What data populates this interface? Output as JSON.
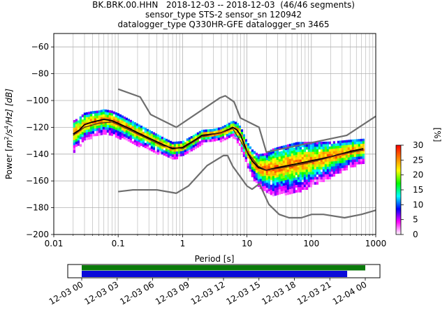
{
  "title_lines": [
    "BK.BRK.00.HHN   2018-12-03 -- 2018-12-03  (46/46 segments)",
    "sensor_type STS-2 sensor_sn 120942",
    "datalogger_type Q330HR-GFE datalogger_sn 3465"
  ],
  "colors": {
    "noise_models": "#6e6e6e",
    "mode_line": "#000000",
    "mean_line": "#5a2a1a",
    "coverage_data": "#0b0bd9",
    "coverage_gaps": "#0a7a0a"
  },
  "chart_data": [
    {
      "type": "heatmap",
      "name": "ppsd",
      "xlabel": "Period [s]",
      "ylabel": "Power [m²/s⁴/Hz] [dB]",
      "ylabel_parts": {
        "pre": "Power [",
        "base1": "m",
        "sup1": "2",
        "mid": "/s",
        "sup2": "4",
        "post": "/Hz] [dB]"
      },
      "xscale": "log",
      "xlim": [
        0.01,
        1000
      ],
      "ylim": [
        -200,
        -50
      ],
      "xticks": [
        0.01,
        0.1,
        1,
        10,
        100,
        1000
      ],
      "xtick_labels": [
        "0.01",
        "0.1",
        "1",
        "10",
        "100",
        "1000"
      ],
      "yticks": [
        -200,
        -180,
        -160,
        -140,
        -120,
        -100,
        -80,
        -60
      ],
      "ytick_labels": [
        "−200",
        "−180",
        "−160",
        "−140",
        "−120",
        "−100",
        "−80",
        "−60"
      ],
      "grid": true,
      "period_range": [
        0.02,
        640
      ],
      "spread_db": [
        [
          0.02,
          8
        ],
        [
          0.05,
          6
        ],
        [
          0.1,
          6
        ],
        [
          0.3,
          5
        ],
        [
          0.8,
          4
        ],
        [
          3,
          3
        ],
        [
          6,
          4
        ],
        [
          10,
          6
        ],
        [
          15,
          8
        ],
        [
          25,
          12
        ],
        [
          60,
          13
        ],
        [
          150,
          10
        ],
        [
          400,
          7
        ],
        [
          640,
          6
        ]
      ],
      "series": [
        {
          "name": "",
          "kind": "mode",
          "x": [
            0.02,
            0.025,
            0.03,
            0.04,
            0.05,
            0.06,
            0.08,
            0.1,
            0.15,
            0.2,
            0.3,
            0.5,
            0.7,
            1,
            1.5,
            2,
            3,
            4,
            5,
            6,
            7,
            8,
            10,
            12,
            15,
            20,
            30,
            50,
            100,
            200,
            400,
            640
          ],
          "y": [
            -125,
            -122,
            -118,
            -116,
            -115,
            -114,
            -115,
            -117,
            -121,
            -124,
            -128,
            -133,
            -136,
            -135,
            -130,
            -126,
            -125,
            -124,
            -122,
            -120,
            -122,
            -126,
            -138,
            -145,
            -150,
            -152,
            -150,
            -148,
            -145,
            -142,
            -138,
            -136
          ]
        },
        {
          "name": "",
          "kind": "mean",
          "x": [
            0.02,
            0.03,
            0.05,
            0.08,
            0.1,
            0.2,
            0.5,
            1,
            2,
            4,
            6,
            10,
            15,
            20,
            50,
            100,
            300,
            640
          ],
          "y": [
            -126,
            -120,
            -117,
            -116,
            -118,
            -125,
            -134,
            -136,
            -127,
            -124,
            -121,
            -138,
            -149,
            -152,
            -149,
            -146,
            -140,
            -137
          ]
        },
        {
          "name": "",
          "kind": "noise_model_high",
          "x": [
            0.1,
            0.22,
            0.32,
            0.8,
            3.8,
            4.6,
            6.3,
            7.9,
            15.4,
            20,
            354.8,
            10000
          ],
          "y": [
            -91.5,
            -97.4,
            -110.5,
            -120,
            -98,
            -96.5,
            -101,
            -113,
            -120,
            -138.5,
            -126,
            -80.1
          ]
        },
        {
          "name": "",
          "kind": "noise_model_low",
          "x": [
            0.1,
            0.17,
            0.4,
            0.8,
            1.24,
            2.4,
            4.3,
            5,
            6,
            10,
            12,
            15.6,
            21.9,
            31.6,
            45,
            70,
            101,
            154,
            328,
            600,
            10000
          ],
          "y": [
            -168,
            -166.7,
            -166.7,
            -169.2,
            -163.7,
            -148.6,
            -141.1,
            -141.1,
            -149,
            -163.8,
            -166.2,
            -162.1,
            -177.5,
            -185,
            -187.5,
            -187.5,
            -185,
            -185,
            -187.5,
            -185,
            -168
          ]
        }
      ],
      "colorbar": {
        "label": "[%]",
        "range": [
          0,
          30
        ],
        "ticks": [
          0,
          5,
          10,
          15,
          20,
          25,
          30
        ],
        "tick_labels": [
          "0",
          "5",
          "10",
          "15",
          "20",
          "25",
          "30"
        ],
        "colormap": "pqlx",
        "stops": [
          "#ffffff",
          "#ff00ff",
          "#0000ff",
          "#00ffff",
          "#00ff00",
          "#ffff00",
          "#ff8000",
          "#ff0000"
        ]
      }
    },
    {
      "type": "timeline",
      "name": "coverage",
      "xlim": [
        "2018-12-03 00:00",
        "2018-12-04 01:00"
      ],
      "xticks": [
        "2018-12-03 00:00",
        "2018-12-03 03:00",
        "2018-12-03 06:00",
        "2018-12-03 09:00",
        "2018-12-03 12:00",
        "2018-12-03 15:00",
        "2018-12-03 18:00",
        "2018-12-03 21:00",
        "2018-12-04 00:00"
      ],
      "xtick_labels": [
        "12-03 00",
        "12-03 03",
        "12-03 06",
        "12-03 09",
        "12-03 12",
        "12-03 15",
        "12-03 18",
        "12-03 21",
        "12-04 00"
      ],
      "bars": [
        {
          "kind": "gaps",
          "start": "2018-12-03 00:00",
          "end": "2018-12-04 00:00"
        },
        {
          "kind": "data",
          "start": "2018-12-03 00:00",
          "end": "2018-12-03 23:00"
        }
      ]
    }
  ]
}
